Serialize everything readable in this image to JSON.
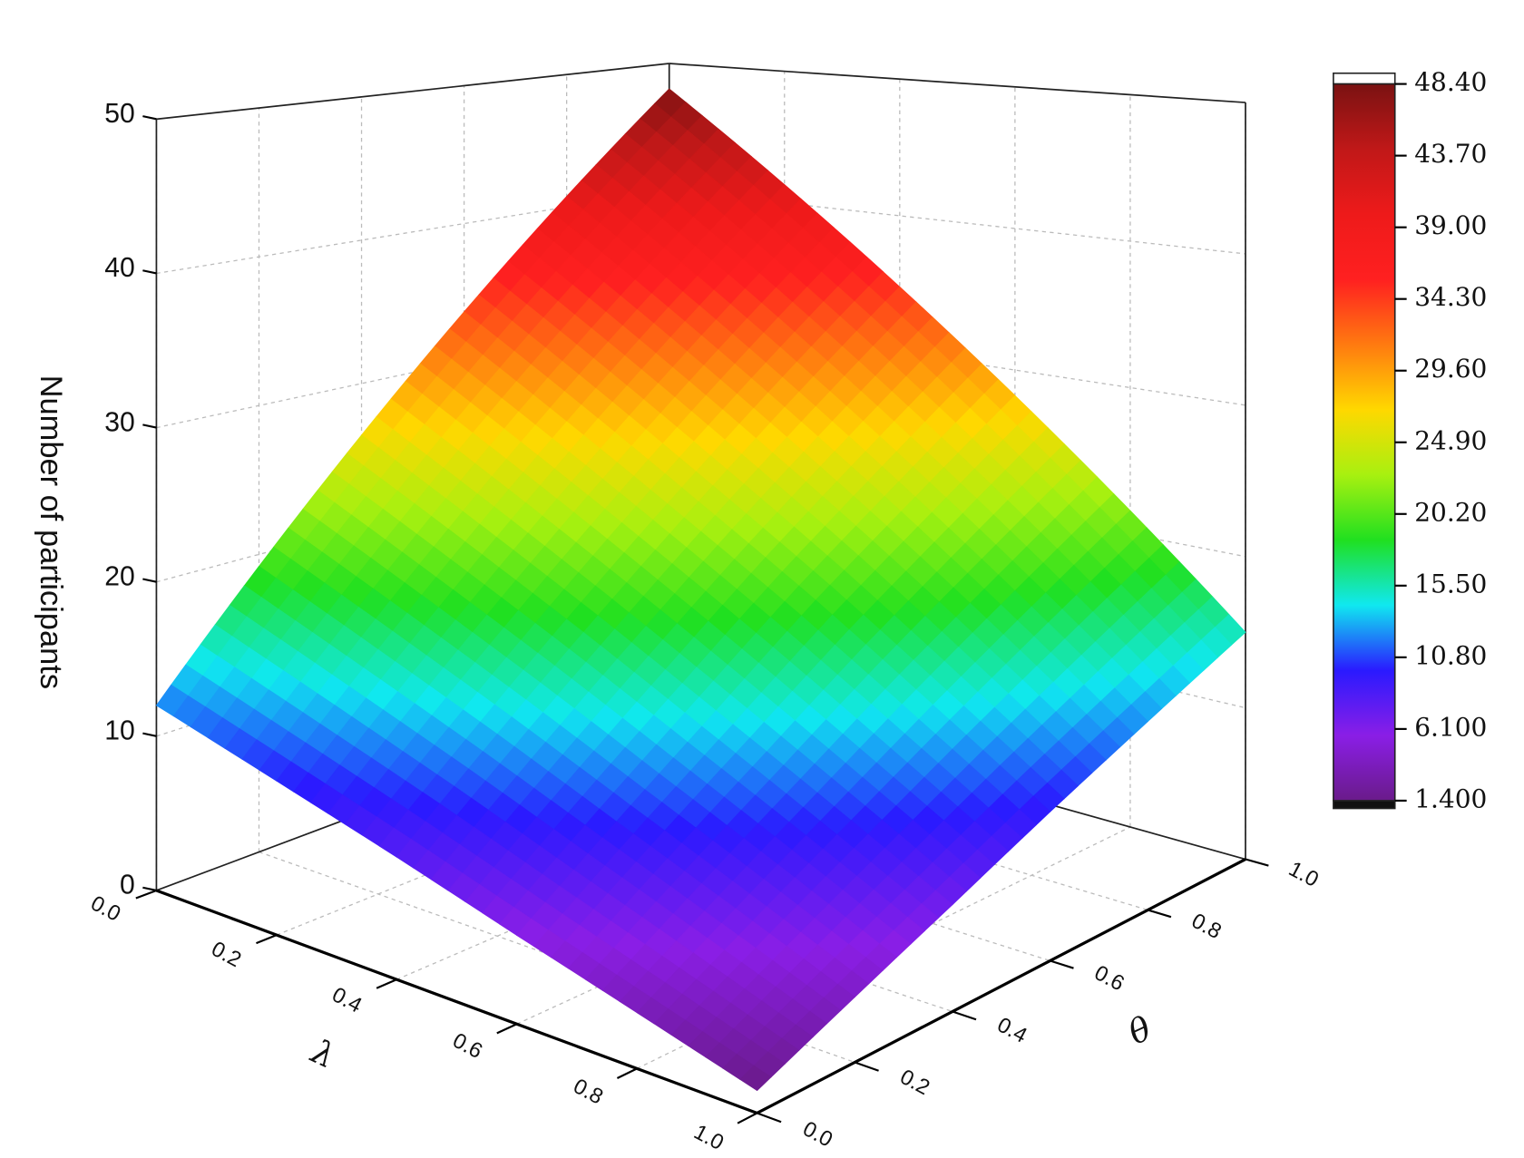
{
  "chart_data": {
    "type": "surface",
    "zlabel": "Number of participants",
    "xlabel": "λ",
    "ylabel": "θ",
    "x": [
      0,
      0.2,
      0.4,
      0.6,
      0.8,
      1
    ],
    "y": [
      0,
      0.2,
      0.4,
      0.6,
      0.8,
      1
    ],
    "z": [
      [
        12,
        19.2,
        26.4,
        33.6,
        40.8,
        48
      ],
      [
        9.9,
        16.2,
        22.5,
        28.8,
        35.1,
        41.4
      ],
      [
        7.8,
        13.2,
        18.6,
        24,
        29.4,
        34.8
      ],
      [
        5.6,
        10.1,
        14.6,
        19.3,
        23.7,
        28.2
      ],
      [
        3.5,
        7.1,
        10.7,
        14.4,
        18,
        21.6
      ],
      [
        1.4,
        4.1,
        6.8,
        9.6,
        12.3,
        15
      ]
    ],
    "xlim": [
      0,
      1
    ],
    "ylim": [
      0,
      1
    ],
    "zlim": [
      0,
      50
    ],
    "xticks": [
      {
        "value": 0,
        "label": "0.0"
      },
      0.2,
      0.4,
      0.6,
      0.8,
      {
        "value": 1,
        "label": "1.0"
      }
    ],
    "yticks": [
      {
        "value": 0,
        "label": "0.0"
      },
      0.2,
      0.4,
      0.6,
      0.8,
      {
        "value": 1,
        "label": "1.0"
      }
    ],
    "zticks": [
      0,
      10,
      20,
      30,
      40,
      50
    ],
    "grid": true,
    "colormap": [
      "#6a1b8a",
      "#8a1ee6",
      "#2a1aff",
      "#10e8f0",
      "#20e020",
      "#a8f010",
      "#ffd800",
      "#ff7a10",
      "#ff2020",
      "#ee1a1a",
      "#c01818",
      "#7a1212"
    ],
    "colorbar_ticks": [
      {
        "value": 48.4,
        "label": "48.40"
      },
      {
        "value": 43.7,
        "label": "43.70"
      },
      {
        "value": 39,
        "label": "39.00"
      },
      {
        "value": 34.3,
        "label": "34.30"
      },
      {
        "value": 29.6,
        "label": "29.60"
      },
      {
        "value": 24.9,
        "label": "24.90"
      },
      {
        "value": 20.2,
        "label": "20.20"
      },
      {
        "value": 15.5,
        "label": "15.50"
      },
      {
        "value": 10.8,
        "label": "10.80"
      },
      {
        "value": 6.1,
        "label": "6.100"
      },
      {
        "value": 1.4,
        "label": "1.400"
      }
    ]
  }
}
